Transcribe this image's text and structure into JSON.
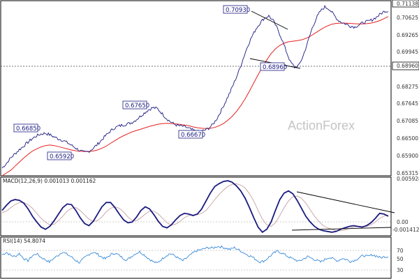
{
  "chart_data": {
    "type": "line",
    "watermark": "ActionForex",
    "price_axis": {
      "ticks": [
        "0.70625",
        "0.69945",
        "0.69265",
        "0.68275",
        "0.67645",
        "0.67085",
        "0.66500",
        "0.65900",
        "0.65315"
      ],
      "current_price": "0.71138",
      "level_label": "0.68960"
    },
    "annotations": [
      "0.70930",
      "0.68960",
      "0.67650",
      "0.66850",
      "0.66670",
      "0.65920"
    ],
    "price_series": {
      "close": [
        0.6538,
        0.6555,
        0.6575,
        0.659,
        0.6605,
        0.6618,
        0.6632,
        0.6645,
        0.6655,
        0.6662,
        0.6665,
        0.666,
        0.6652,
        0.6645,
        0.664,
        0.6632,
        0.6622,
        0.6612,
        0.6602,
        0.6595,
        0.6598,
        0.6608,
        0.6622,
        0.6638,
        0.6655,
        0.667,
        0.6683,
        0.669,
        0.6695,
        0.6698,
        0.6703,
        0.6712,
        0.6725,
        0.6738,
        0.675,
        0.6758,
        0.6755,
        0.674,
        0.6722,
        0.6708,
        0.6698,
        0.6692,
        0.669,
        0.6685,
        0.6678,
        0.6672,
        0.667,
        0.6675,
        0.6683,
        0.6697,
        0.672,
        0.675,
        0.6782,
        0.6815,
        0.6852,
        0.689,
        0.6935,
        0.698,
        0.7015,
        0.7045,
        0.7068,
        0.7085,
        0.7092,
        0.7075,
        0.7045,
        0.7008,
        0.6965,
        0.6925,
        0.6905,
        0.6912,
        0.6948,
        0.6995,
        0.7045,
        0.7083,
        0.711,
        0.7125,
        0.7118,
        0.7098,
        0.7078,
        0.7068,
        0.7062,
        0.7055,
        0.7052,
        0.706,
        0.7068,
        0.7072,
        0.7078,
        0.7088,
        0.71,
        0.711
      ],
      "ma": [
        0.651,
        0.652,
        0.653,
        0.6545,
        0.656,
        0.6575,
        0.6588,
        0.66,
        0.6608,
        0.6615,
        0.662,
        0.6622,
        0.662,
        0.6616,
        0.6612,
        0.6608,
        0.6604,
        0.6601,
        0.6599,
        0.6598,
        0.6598,
        0.66,
        0.6604,
        0.661,
        0.6618,
        0.6628,
        0.6638,
        0.6648,
        0.6656,
        0.6663,
        0.667,
        0.6675,
        0.668,
        0.6685,
        0.669,
        0.6694,
        0.6698,
        0.67,
        0.6701,
        0.67,
        0.6699,
        0.6697,
        0.6695,
        0.6692,
        0.6688,
        0.6685,
        0.6683,
        0.6682,
        0.6683,
        0.6686,
        0.6692,
        0.67,
        0.6712,
        0.6726,
        0.6744,
        0.6765,
        0.679,
        0.6818,
        0.6848,
        0.6878,
        0.6906,
        0.6932,
        0.6955,
        0.6972,
        0.6985,
        0.6993,
        0.6998,
        0.7,
        0.7002,
        0.7005,
        0.701,
        0.7018,
        0.7028,
        0.7038,
        0.7048,
        0.7056,
        0.7062,
        0.7065,
        0.7066,
        0.7066,
        0.7065,
        0.7064,
        0.7063,
        0.7063,
        0.7064,
        0.7066,
        0.707,
        0.7075,
        0.7082,
        0.709
      ]
    },
    "macd": {
      "label": "MACD(12,26,9) 0.001013 0.001162",
      "ticks": [
        "0.005928",
        "0.00",
        "-0.001412"
      ],
      "values": [
        0.0018,
        0.0025,
        0.0031,
        0.0033,
        0.0032,
        0.0028,
        0.002,
        0.001,
        0.0002,
        -0.0005,
        -0.0008,
        -0.0004,
        0.0004,
        0.0013,
        0.0022,
        0.0027,
        0.0026,
        0.0018,
        0.0008,
        0,
        -0.0003,
        0.0003,
        0.0013,
        0.0023,
        0.0029,
        0.0029,
        0.0022,
        0.0013,
        0.0005,
        0.0001,
        0.0002,
        0.0009,
        0.0018,
        0.0023,
        0.002,
        0.0012,
        0.0003,
        -0.0004,
        -0.0006,
        -0.0002,
        0.0005,
        0.0011,
        0.0014,
        0.0013,
        0.0011,
        0.0013,
        0.002,
        0.0031,
        0.0042,
        0.0051,
        0.0055,
        0.0058,
        0.0059,
        0.0057,
        0.0052,
        0.0045,
        0.0035,
        0.0022,
        0.0008,
        -0.0005,
        -0.0012,
        -0.0008,
        0.0002,
        0.0018,
        0.0033,
        0.0042,
        0.0045,
        0.0041,
        0.0032,
        0.0021,
        0.001,
        0.0002,
        -0.0004,
        -0.0008,
        -0.001,
        -0.0011,
        -0.0012,
        -0.0011,
        -0.0008,
        -0.0006,
        -0.0004,
        -0.0003,
        -0.0004,
        -0.0005,
        -0.0003,
        0.0001,
        0.0007,
        0.0014,
        0.0013,
        0.001
      ],
      "signal": [
        0.0015,
        0.0017,
        0.0022,
        0.0026,
        0.0029,
        0.0029,
        0.0026,
        0.0021,
        0.0014,
        0.0007,
        0.0002,
        -0.0002,
        -0.0001,
        0.0004,
        0.001,
        0.0017,
        0.0021,
        0.0022,
        0.0018,
        0.0012,
        0.0006,
        0.0003,
        0.0004,
        0.0009,
        0.0016,
        0.0021,
        0.0023,
        0.0021,
        0.0016,
        0.0009,
        0.0004,
        0.0004,
        0.0008,
        0.0013,
        0.0017,
        0.0017,
        0.0013,
        0.0007,
        0.0001,
        -0.0002,
        -0.0001,
        0.0003,
        0.0008,
        0.0011,
        0.0012,
        0.0012,
        0.0014,
        0.0018,
        0.0025,
        0.0033,
        0.004,
        0.0046,
        0.0051,
        0.0054,
        0.0055,
        0.0053,
        0.0049,
        0.0041,
        0.0031,
        0.0018,
        0.0006,
        -0.0002,
        -0.0004,
        0.0001,
        0.0011,
        0.0022,
        0.0031,
        0.0037,
        0.0038,
        0.0035,
        0.0028,
        0.0019,
        0.001,
        0.0003,
        -0.0003,
        -0.0006,
        -0.0008,
        -0.001,
        -0.001,
        -0.0009,
        -0.0007,
        -0.0005,
        -0.0004,
        -0.0004,
        -0.0004,
        -0.0002,
        0.0002,
        0.0007,
        0.001,
        0.0012
      ]
    },
    "rsi": {
      "label": "RSI(14) 54.8074",
      "ticks": [
        "70",
        "50",
        "30"
      ],
      "values": [
        58,
        62,
        57,
        55,
        60,
        52,
        48,
        56,
        60,
        54,
        50,
        46,
        52,
        57,
        63,
        59,
        55,
        49,
        45,
        52,
        58,
        62,
        60,
        55,
        51,
        57,
        61,
        58,
        53,
        49,
        55,
        60,
        63,
        58,
        52,
        47,
        44,
        50,
        56,
        60,
        57,
        52,
        48,
        53,
        59,
        64,
        66,
        68,
        70,
        69,
        72,
        71,
        69,
        67,
        70,
        66,
        62,
        58,
        55,
        50,
        46,
        48,
        54,
        60,
        64,
        61,
        57,
        53,
        50,
        47,
        51,
        55,
        52,
        49,
        46,
        50,
        54,
        51,
        48,
        52,
        50,
        47,
        49,
        53,
        57,
        55,
        58,
        56,
        53,
        55
      ]
    }
  }
}
